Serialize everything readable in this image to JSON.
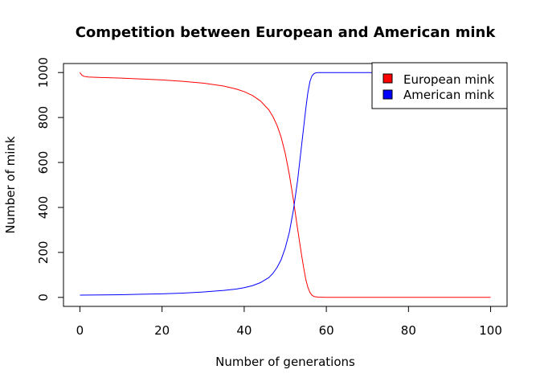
{
  "chart_data": {
    "type": "line",
    "title": "Competition between European and American mink",
    "xlabel": "Number of generations",
    "ylabel": "Number of mink",
    "xlim": [
      -4,
      104
    ],
    "ylim": [
      -40,
      1040
    ],
    "xticks": [
      0,
      20,
      40,
      60,
      80,
      100
    ],
    "yticks": [
      0,
      200,
      400,
      600,
      800,
      1000
    ],
    "grid": false,
    "legend": {
      "placement": "top-right",
      "entries": [
        "European mink",
        "American mink"
      ]
    },
    "series": [
      {
        "name": "European mink",
        "color": "#ff0000",
        "x": [
          0,
          0.5,
          1,
          2,
          5,
          10,
          15,
          20,
          25,
          30,
          35,
          38,
          40,
          42,
          44,
          46,
          47,
          48,
          49,
          50,
          51,
          52,
          53,
          53.5,
          54,
          54.5,
          55,
          55.5,
          56,
          56.5,
          57,
          58,
          60,
          70,
          80,
          90,
          100
        ],
        "y": [
          1000,
          988,
          983,
          980,
          978,
          975,
          971,
          967,
          961,
          953,
          940,
          927,
          915,
          898,
          873,
          834,
          804,
          765,
          712,
          640,
          546,
          432,
          305,
          245,
          185,
          130,
          80,
          45,
          22,
          10,
          4,
          1,
          0,
          0,
          0,
          0,
          0
        ]
      },
      {
        "name": "American mink",
        "color": "#0000ff",
        "x": [
          0,
          5,
          10,
          15,
          20,
          25,
          30,
          35,
          38,
          40,
          42,
          44,
          46,
          47,
          48,
          49,
          50,
          51,
          52,
          53,
          53.5,
          54,
          54.5,
          55,
          55.5,
          56,
          56.5,
          57,
          57.5,
          58,
          60,
          70,
          80,
          90,
          100
        ],
        "y": [
          10,
          11,
          12,
          14,
          16,
          19,
          24,
          31,
          37,
          43,
          52,
          66,
          88,
          107,
          133,
          168,
          220,
          290,
          390,
          520,
          600,
          680,
          760,
          840,
          910,
          960,
          985,
          995,
          999,
          1000,
          1000,
          1000,
          1000,
          1000,
          1000
        ]
      }
    ]
  }
}
